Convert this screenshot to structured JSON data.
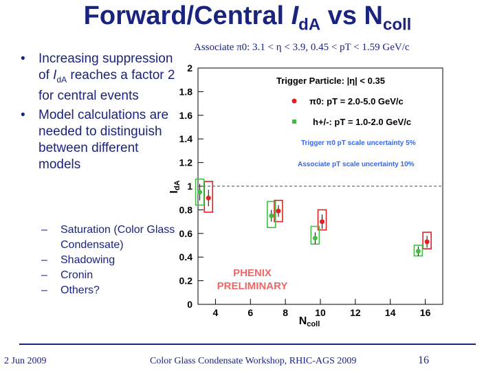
{
  "slide": {
    "title_main": "Forward/Central ",
    "title_I": "I",
    "title_I_sub": "dA",
    "title_vs": " vs N",
    "title_N_sub": "coll",
    "bullet1_text": "Increasing suppression of ",
    "bullet1_I": "I",
    "bullet1_I_sub": "dA",
    "bullet1_end": " reaches a factor 2 for central events",
    "bullet2": "Model calculations are needed to distinguish between different models",
    "sub_bullets": [
      "Saturation (Color Glass Condensate)",
      "Shadowing",
      "Cronin",
      "Others?"
    ],
    "associate_text": "Associate π0: 3.1 < η  < 3.9, 0.45 < pT < 1.59 GeV/c",
    "footer_date": "2 Jun 2009",
    "footer_center": "Color Glass Condensate Workshop, RHIC-AGS 2009",
    "page_number": "16"
  },
  "chart_data": {
    "type": "scatter",
    "xlabel": "Ncoll",
    "ylabel": "IdA",
    "xlim": [
      3,
      17
    ],
    "ylim": [
      0,
      2
    ],
    "xticks": [
      4,
      6,
      8,
      10,
      12,
      14,
      16
    ],
    "yticks": [
      0,
      0.2,
      0.4,
      0.6,
      0.8,
      1,
      1.2,
      1.4,
      1.6,
      1.8,
      2
    ],
    "reference_line_y": 1,
    "trigger_label": "Trigger Particle: |η| < 0.35",
    "series": [
      {
        "name": "π0: pT = 2.0-5.0 GeV/c",
        "color": "#e02020",
        "points": [
          {
            "x": 3.6,
            "y": 0.9,
            "err": 0.07,
            "sys_lo": 0.78,
            "sys_hi": 1.04
          },
          {
            "x": 7.6,
            "y": 0.79,
            "err": 0.05,
            "sys_lo": 0.7,
            "sys_hi": 0.88
          },
          {
            "x": 10.1,
            "y": 0.7,
            "err": 0.06,
            "sys_lo": 0.63,
            "sys_hi": 0.8
          },
          {
            "x": 16.1,
            "y": 0.53,
            "err": 0.05,
            "sys_lo": 0.47,
            "sys_hi": 0.61
          }
        ]
      },
      {
        "name": "h+/-: pT = 1.0-2.0 GeV/c",
        "color": "#44bb44",
        "points": [
          {
            "x": 3.1,
            "y": 0.95,
            "err": 0.07,
            "sys_lo": 0.84,
            "sys_hi": 1.06
          },
          {
            "x": 7.2,
            "y": 0.75,
            "err": 0.05,
            "sys_lo": 0.65,
            "sys_hi": 0.87
          },
          {
            "x": 9.7,
            "y": 0.56,
            "err": 0.05,
            "sys_lo": 0.51,
            "sys_hi": 0.66
          },
          {
            "x": 15.6,
            "y": 0.45,
            "err": 0.04,
            "sys_lo": 0.41,
            "sys_hi": 0.5
          }
        ]
      }
    ],
    "annotations": {
      "trigger_scale": "Trigger π0 pT scale uncertainty 5%",
      "associate_scale": "Associate pT scale uncertainty 10%",
      "phenix1": "PHENIX",
      "phenix2": "PRELIMINARY"
    },
    "colors": {
      "trigger_scale": "#3366ee",
      "associate_scale": "#3366ee",
      "phenix": "#ee6666"
    }
  }
}
